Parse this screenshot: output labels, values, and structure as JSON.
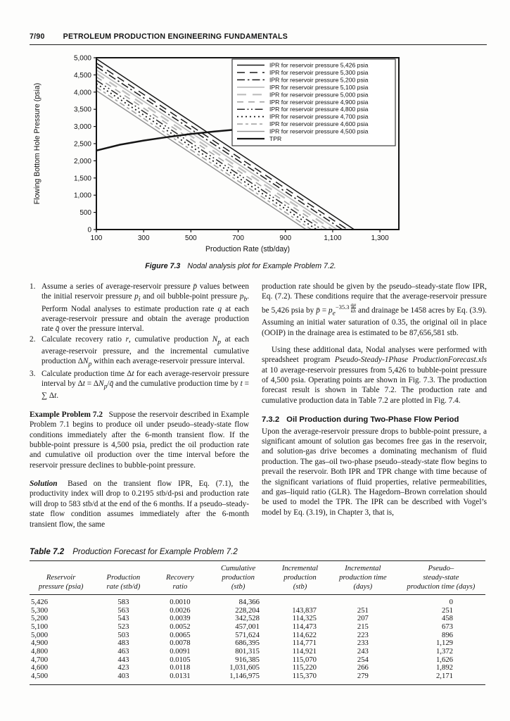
{
  "page": {
    "number": "7/90",
    "running_title": "PETROLEUM PRODUCTION ENGINEERING FUNDAMENTALS"
  },
  "figure": {
    "caption_label": "Figure 7.3",
    "caption_text": "Nodal analysis plot for Example Problem 7.2."
  },
  "chart_data": {
    "type": "line",
    "title": "",
    "xlabel": "Production Rate (stb/day)",
    "ylabel": "Flowing Bottom Hole Pressure (psia)",
    "xlim": [
      100,
      1380
    ],
    "ylim": [
      0,
      5000
    ],
    "grid": false,
    "legend_position": "top-right",
    "xticks": [
      {
        "value": 100,
        "label": "100"
      },
      {
        "value": 300,
        "label": "300"
      },
      {
        "value": 500,
        "label": "500"
      },
      {
        "value": 700,
        "label": "700"
      },
      {
        "value": 900,
        "label": "900"
      },
      {
        "value": 1100,
        "label": "1,100"
      },
      {
        "value": 1300,
        "label": "1,300"
      }
    ],
    "yticks": [
      {
        "value": 0,
        "label": "0"
      },
      {
        "value": 500,
        "label": "500"
      },
      {
        "value": 1000,
        "label": "1,000"
      },
      {
        "value": 1500,
        "label": "1,500"
      },
      {
        "value": 2000,
        "label": "2,000"
      },
      {
        "value": 2500,
        "label": "2,500"
      },
      {
        "value": 3000,
        "label": "3,000"
      },
      {
        "value": 3500,
        "label": "3,500"
      },
      {
        "value": 4000,
        "label": "4,000"
      },
      {
        "value": 4500,
        "label": "4,500"
      },
      {
        "value": 5000,
        "label": "5,000"
      }
    ],
    "series": [
      {
        "name": "IPR for reservoir pressure 5,426 psia",
        "x": [
          100,
          1191
        ],
        "y": [
          4970,
          0
        ],
        "color": "#1a1a1a",
        "dash": "",
        "width": 1.5
      },
      {
        "name": "IPR for reservoir pressure 5,300 psia",
        "x": [
          100,
          1163
        ],
        "y": [
          4844,
          0
        ],
        "color": "#1a1a1a",
        "dash": "11,7",
        "width": 1.5
      },
      {
        "name": "IPR for reservoir pressure 5,200 psia",
        "x": [
          100,
          1141
        ],
        "y": [
          4744,
          0
        ],
        "color": "#1a1a1a",
        "dash": "11,4,2.5,4",
        "width": 1.5
      },
      {
        "name": "IPR for reservoir pressure 5,100 psia",
        "x": [
          100,
          1119
        ],
        "y": [
          4644,
          0
        ],
        "color": "#b3b3b3",
        "dash": "",
        "width": 1.5
      },
      {
        "name": "IPR for reservoir pressure 5,000 psia",
        "x": [
          100,
          1098
        ],
        "y": [
          4544,
          0
        ],
        "color": "#bdbdbd",
        "dash": "13,9",
        "width": 2.2
      },
      {
        "name": "IPR for reservoir pressure 4,900 psia",
        "x": [
          100,
          1076
        ],
        "y": [
          4444,
          0
        ],
        "color": "#9e9e9e",
        "dash": "9,7",
        "width": 1.5
      },
      {
        "name": "IPR for reservoir pressure 4,800 psia",
        "x": [
          100,
          1054
        ],
        "y": [
          4344,
          0
        ],
        "color": "#2a2a2a",
        "dash": "11,3.5,2,3.5,2,3.5",
        "width": 1.5
      },
      {
        "name": "IPR for reservoir pressure 4,700 psia",
        "x": [
          100,
          1032
        ],
        "y": [
          4244,
          0
        ],
        "color": "#1a1a1a",
        "dash": "2,4",
        "width": 1.8
      },
      {
        "name": "IPR for reservoir pressure 4,600 psia",
        "x": [
          100,
          1010
        ],
        "y": [
          4144,
          0
        ],
        "color": "#9e9e9e",
        "dash": "8,4,4,4",
        "width": 1.5
      },
      {
        "name": "IPR for reservoir pressure 4,500 psia",
        "x": [
          100,
          988
        ],
        "y": [
          4044,
          0
        ],
        "color": "#8f8f8f",
        "dash": "",
        "width": 1.4
      },
      {
        "name": "TPR",
        "x": [
          100,
          200,
          300,
          400,
          500,
          600,
          700,
          800,
          900,
          1000,
          1100,
          1200,
          1300
        ],
        "y": [
          2300,
          2470,
          2590,
          2690,
          2780,
          2855,
          2915,
          2960,
          2995,
          3025,
          3045,
          3060,
          3070
        ],
        "color": "#151515",
        "dash": "",
        "width": 2.5
      }
    ]
  },
  "body": {
    "left_column": {
      "list": [
        {
          "number": "1.",
          "html": "Assume a series of average-reservoir pressure <i>p̄</i> values between the initial reservoir pressure <i>p<sub>i</sub></i> and oil bubble-point pressure <i>p<sub>b</sub></i>. Perform Nodal analyses to estimate production rate <i>q</i> at each average-reservoir pressure and obtain the average production rate <i>q̄</i> over the pressure interval."
        },
        {
          "number": "2.",
          "html": "Calculate recovery ratio <i>r</i>, cumulative production <i>N<sub>p</sub></i> at each average-reservoir pressure, and the incremental cumulative production Δ<i>N<sub>p</sub></i> within each average-reservoir pressure interval."
        },
        {
          "number": "3.",
          "html": "Calculate production time Δ<i>t</i> for each average-reservoir pressure interval by Δ<i>t</i> = Δ<i>N<sub>p</sub></i>/<i>q̄</i> and the cumulative production time by <i>t</i> = ∑ Δ<i>t</i>."
        }
      ],
      "example_problem_html": "<b>Example Problem 7.2</b>&ensp;&nbsp;Suppose the reservoir described in Example Problem 7.1 begins to produce oil under pseudo–steady-state flow conditions immediately after the 6-month transient flow. If the bubble-point pressure is 4,500 psia, predict the oil production rate and cumulative oil production over the time interval before the reservoir pressure declines to bubble-point pressure.",
      "solution_html": "<b><i>Solution</i></b>&ensp;&nbsp;Based on the transient flow IPR, Eq. (7.1), the productivity index will drop to 0.2195 stb/d-psi and production rate will drop to 583 stb/d at the end of the 6 months. If a pseudo–steady-state flow condition assumes immediately after the 6-month transient flow, the same"
    },
    "right_column": {
      "p1_html": "production rate should be given by the pseudo–steady-state flow IPR, Eq. (7.2). These conditions require that the average-reservoir pressure be 5,426 psia by <i>p̄</i> = <i>p<sub>e</sub></i><sup class=\"expfrac\">−35.3<span class=\"frac\"><span class=\"fnum\"><i>qμ</i></span><span class=\"fden\"><i>kh</i></span></span></sup> and drainage be 1458 acres by Eq. (3.9). Assuming an initial water saturation of 0.35, the original oil in place (OOIP) in the drainage area is estimated to be 87,656,581 stb.",
      "p2_html": "Using these additional data, Nodal analyses were performed with spreadsheet program <i>Pseudo-Steady-1Phase ProductionForecast.xls</i> at 10 average-reservoir pressures from 5,426 to bubble-point pressure of 4,500 psia. Operating points are shown in Fig. 7.3. The production forecast result is shown in Table 7.2. The production rate and cumulative production data in Table 7.2 are plotted in Fig. 7.4.",
      "section_heading_number": "7.3.2",
      "section_heading_text": "Oil Production during Two-Phase Flow Period",
      "p3_html": "Upon the average-reservoir pressure drops to bubble-point pressure, a significant amount of solution gas becomes free gas in the reservoir, and solution-gas drive becomes a dominating mechanism of fluid production. The gas–oil two-phase pseudo–steady-state flow begins to prevail the reservoir. Both IPR and TPR change with time because of the significant variations of fluid properties, relative permeabilities, and gas–liquid ratio (GLR). The Hagedorn–Brown correlation should be used to model the TPR. The IPR can be described with Vogel’s model by Eq. (3.19), in Chapter 3, that is,"
    }
  },
  "table": {
    "caption_label": "Table 7.2",
    "caption_text": "Production Forecast for Example Problem 7.2",
    "headers": [
      [
        "Reservoir",
        "pressure (psia)"
      ],
      [
        "Production",
        "rate (stb/d)"
      ],
      [
        "Recovery",
        "ratio"
      ],
      [
        "Cumulative",
        "production",
        "(stb)"
      ],
      [
        "Incremental",
        "production",
        "(stb)"
      ],
      [
        "Incremental",
        "production time",
        "(days)"
      ],
      [
        "Pseudo–",
        "steady-state",
        "production time (days)"
      ]
    ],
    "rows": [
      [
        "5,426",
        "583",
        "0.0010",
        "84,366",
        "",
        "",
        "0"
      ],
      [
        "5,300",
        "563",
        "0.0026",
        "228,204",
        "143,837",
        "251",
        "251"
      ],
      [
        "5,200",
        "543",
        "0.0039",
        "342,528",
        "114,325",
        "207",
        "458"
      ],
      [
        "5,100",
        "523",
        "0.0052",
        "457,001",
        "114,473",
        "215",
        "673"
      ],
      [
        "5,000",
        "503",
        "0.0065",
        "571,624",
        "114,622",
        "223",
        "896"
      ],
      [
        "4,900",
        "483",
        "0.0078",
        "686,395",
        "114,771",
        "233",
        "1,129"
      ],
      [
        "4,800",
        "463",
        "0.0091",
        "801,315",
        "114,921",
        "243",
        "1,372"
      ],
      [
        "4,700",
        "443",
        "0.0105",
        "916,385",
        "115,070",
        "254",
        "1,626"
      ],
      [
        "4,600",
        "423",
        "0.0118",
        "1,031,605",
        "115,220",
        "266",
        "1,892"
      ],
      [
        "4,500",
        "403",
        "0.0131",
        "1,146,975",
        "115,370",
        "279",
        "2,171"
      ]
    ]
  }
}
